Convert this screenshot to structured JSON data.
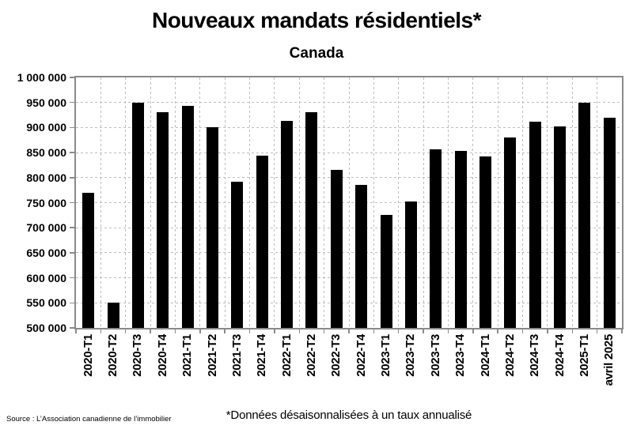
{
  "header": {
    "title": "Nouveaux mandats résidentiels*",
    "subtitle": "Canada"
  },
  "footer": {
    "footnote": "*Données désaisonnalisées à un taux annualisé",
    "source": "Source : L’Association canadienne de l’immobilier"
  },
  "chart_data": {
    "type": "bar",
    "title": "Nouveaux mandats résidentiels*",
    "subtitle": "Canada",
    "categories": [
      "2020-T1",
      "2020-T2",
      "2020-T3",
      "2020-T4",
      "2021-T1",
      "2021-T2",
      "2021-T3",
      "2021-T4",
      "2022-T1",
      "2022-T2",
      "2022-T3",
      "2022-T4",
      "2023-T1",
      "2023-T2",
      "2023-T3",
      "2023-T4",
      "2024-T1",
      "2024-T2",
      "2024-T3",
      "2024-T4",
      "2025-T1",
      "avril 2025"
    ],
    "values": [
      769000,
      550000,
      949000,
      930000,
      944000,
      900000,
      792000,
      844000,
      913000,
      931000,
      816000,
      786000,
      725000,
      752000,
      856000,
      853000,
      842000,
      880000,
      912000,
      903000,
      949000,
      919000
    ],
    "ylim": [
      500000,
      1000000
    ],
    "ytick_step": 50000,
    "ytick_labels": [
      "1 000 000",
      "950 000",
      "900 000",
      "850 000",
      "800 000",
      "750 000",
      "700 000",
      "650 000",
      "600 000",
      "550 000",
      "500 000"
    ],
    "xlabel": "",
    "ylabel": "",
    "legend": "none",
    "grid": "dashed-horizontal-and-vertical",
    "bar_color": "#000000",
    "frame_color": "#8a8a8a"
  }
}
